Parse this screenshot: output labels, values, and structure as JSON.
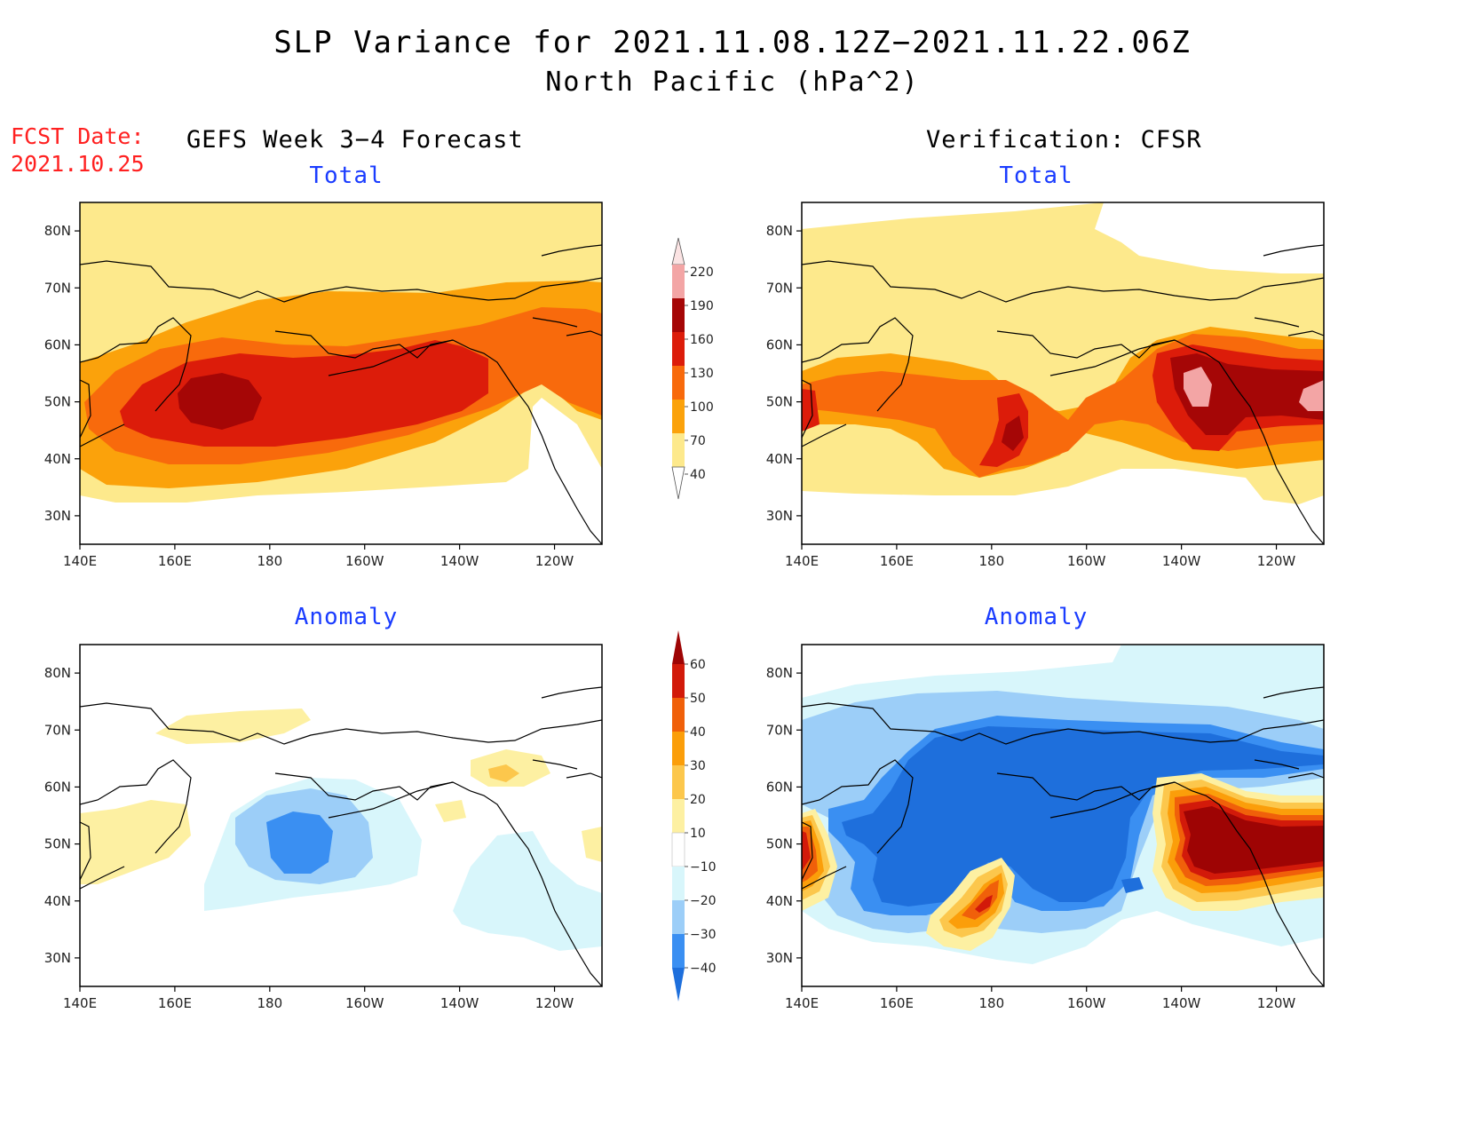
{
  "title_line1": "SLP Variance for 2021.11.08.12Z−2021.11.22.06Z",
  "title_line2": "North Pacific (hPa^2)",
  "fcst_label": "FCST Date:",
  "fcst_date": "2021.10.25",
  "left_column_title": "GEFS Week 3−4 Forecast",
  "right_column_title": "Verification: CFSR",
  "panels": [
    {
      "id": "fcst-total",
      "title": "Total"
    },
    {
      "id": "verif-total",
      "title": "Total"
    },
    {
      "id": "fcst-anom",
      "title": "Anomaly"
    },
    {
      "id": "verif-anom",
      "title": "Anomaly"
    }
  ],
  "axes": {
    "lat_labels": [
      "80N",
      "70N",
      "60N",
      "50N",
      "40N",
      "30N"
    ],
    "lat_values": [
      80,
      70,
      60,
      50,
      40,
      30
    ],
    "lon_labels": [
      "140E",
      "160E",
      "180",
      "160W",
      "140W",
      "120W"
    ],
    "lon_values": [
      140,
      160,
      180,
      200,
      220,
      240
    ],
    "lon_range": [
      140,
      250
    ],
    "lat_range": [
      25,
      85
    ]
  },
  "total_colorbar": {
    "levels": [
      40,
      70,
      100,
      130,
      160,
      190,
      220
    ],
    "labels": [
      "40",
      "70",
      "100",
      "130",
      "160",
      "190",
      "220"
    ],
    "colors": [
      "#fde98c",
      "#fba20b",
      "#f86a0c",
      "#dc1c0a",
      "#a50606",
      "#f3a5a5",
      "#fbe3e3"
    ]
  },
  "anomaly_colorbar": {
    "levels": [
      -40,
      -30,
      -20,
      -10,
      10,
      20,
      30,
      40,
      50,
      60
    ],
    "labels": [
      "−40",
      "−30",
      "−20",
      "−10",
      "10",
      "20",
      "30",
      "40",
      "50",
      "60"
    ],
    "colors": [
      "#1e6fdc",
      "#3a8ff2",
      "#9ccef8",
      "#d8f6fb",
      "#ffffff",
      "#fdf0a2",
      "#fcc74c",
      "#fb9e0a",
      "#f0600a",
      "#d21a0a",
      "#9e0404"
    ]
  }
}
